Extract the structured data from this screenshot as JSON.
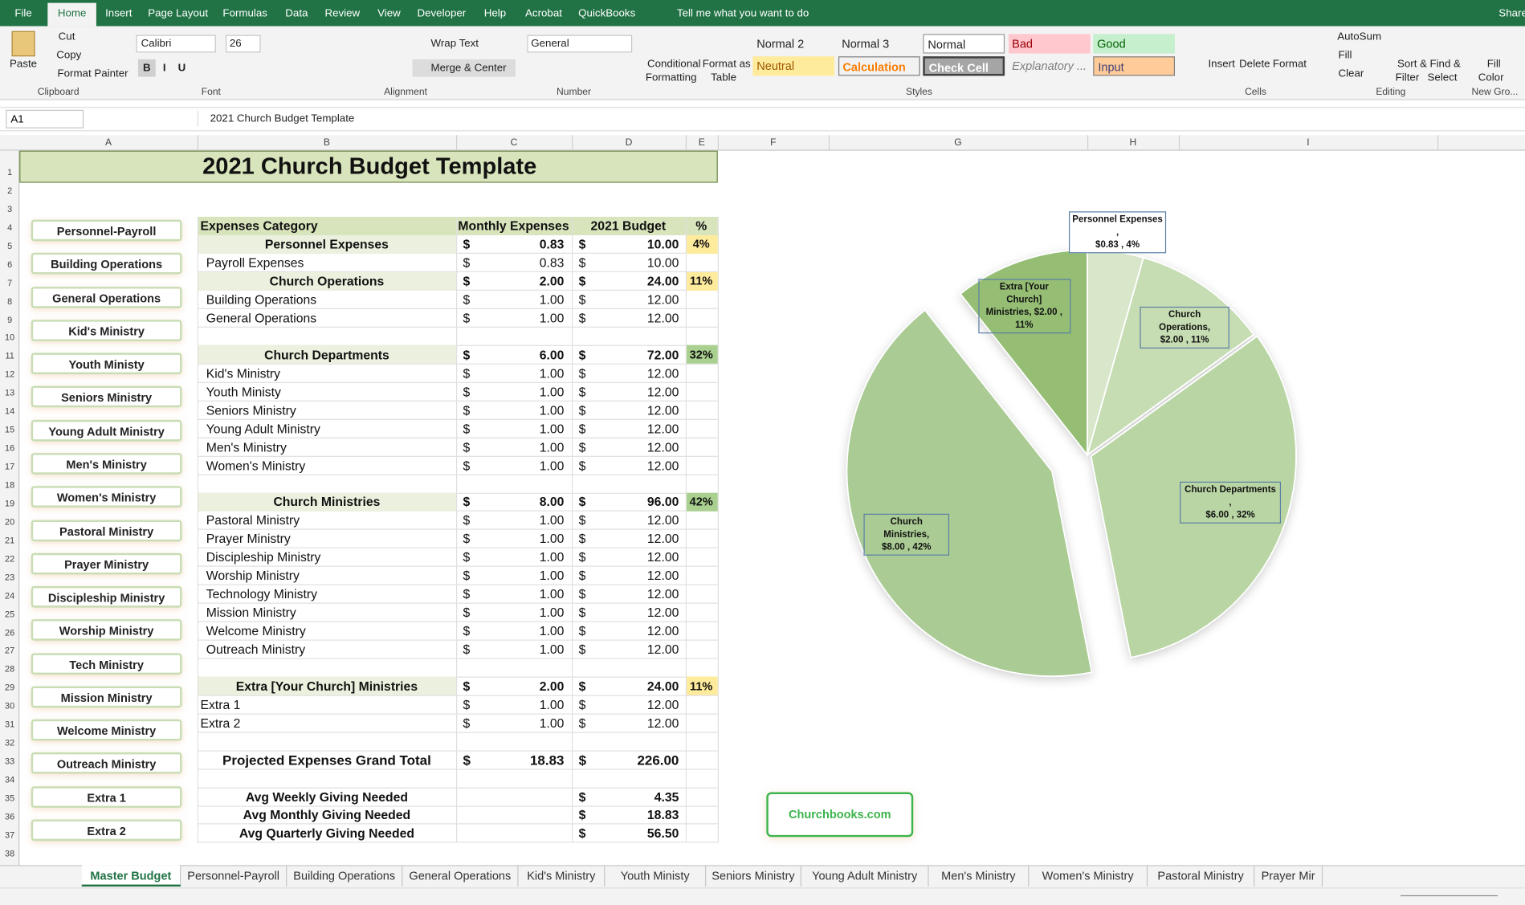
{
  "ribbon": {
    "tabs": [
      "File",
      "Home",
      "Insert",
      "Page Layout",
      "Formulas",
      "Data",
      "Review",
      "View",
      "Developer",
      "Help",
      "Acrobat",
      "QuickBooks"
    ],
    "active_tab": 1,
    "tell_me": "Tell me what you want to do",
    "share": "Share",
    "labels": [
      "Paste",
      "Cut",
      "Copy",
      "Format Painter",
      "Calibri",
      "26",
      "B",
      "I",
      "U",
      "Wrap Text",
      "Merge & Center",
      "General",
      "Conditional",
      "Formatting",
      "Format as",
      "Table",
      "Insert",
      "Delete",
      "Format",
      "AutoSum",
      "Fill",
      "Clear",
      "Sort &",
      "Filter",
      "Find &",
      "Select",
      "Fill",
      "Color"
    ],
    "styles": [
      "Normal 2",
      "Normal 3",
      "Normal",
      "Bad",
      "Good",
      "Neutral",
      "Calculation",
      "Check Cell",
      "Explanatory ...",
      "Input"
    ],
    "groups": [
      "Clipboard",
      "Font",
      "Alignment",
      "Number",
      "Styles",
      "Cells",
      "Editing",
      "New Gro..."
    ]
  },
  "formula_bar": {
    "name_box": "A1"
  },
  "column_headers": [
    "A",
    "B",
    "C",
    "D",
    "E",
    "F",
    "G",
    "H",
    "I"
  ],
  "row_headers": [
    1,
    2,
    3,
    4,
    5,
    6,
    7,
    8,
    9,
    10,
    11,
    12,
    13,
    14,
    15,
    16,
    17,
    18,
    19,
    20,
    21,
    22,
    23,
    24,
    25,
    26,
    27,
    28,
    29,
    30,
    31,
    32,
    33,
    34,
    35,
    36,
    37,
    38
  ],
  "sheet": {
    "title": "2021 Church Budget Template",
    "currency": "$",
    "header": [
      "Expenses Category",
      "Monthly Expenses",
      "2021 Budget",
      "%"
    ],
    "rows": [
      {
        "category": "Personnel Expenses",
        "monthly": "0.83",
        "budget": "10.00",
        "pct": "4%",
        "pct_color": "#ffeb9c",
        "kind": "section"
      },
      {
        "category": "Payroll Expenses",
        "monthly": "0.83",
        "budget": "10.00",
        "kind": "item"
      },
      {
        "category": "Church Operations",
        "monthly": "2.00",
        "budget": "24.00",
        "pct": "11%",
        "pct_color": "#ffeb9c",
        "kind": "section"
      },
      {
        "category": "Building Operations",
        "monthly": "1.00",
        "budget": "12.00",
        "kind": "item"
      },
      {
        "category": "General Operations",
        "monthly": "1.00",
        "budget": "12.00",
        "kind": "item"
      },
      null,
      {
        "category": "Church Departments",
        "monthly": "6.00",
        "budget": "72.00",
        "pct": "32%",
        "pct_color": "#a9d08e",
        "kind": "section"
      },
      {
        "category": "Kid's Ministry",
        "monthly": "1.00",
        "budget": "12.00",
        "kind": "item"
      },
      {
        "category": "Youth Ministy",
        "monthly": "1.00",
        "budget": "12.00",
        "kind": "item"
      },
      {
        "category": "Seniors Ministry",
        "monthly": "1.00",
        "budget": "12.00",
        "kind": "item"
      },
      {
        "category": "Young Adult Ministry",
        "monthly": "1.00",
        "budget": "12.00",
        "kind": "item"
      },
      {
        "category": "Men's Ministry",
        "monthly": "1.00",
        "budget": "12.00",
        "kind": "item"
      },
      {
        "category": "Women's Ministry",
        "monthly": "1.00",
        "budget": "12.00",
        "kind": "item"
      },
      null,
      {
        "category": "Church Ministries",
        "monthly": "8.00",
        "budget": "96.00",
        "pct": "42%",
        "pct_color": "#a9d08e",
        "kind": "section"
      },
      {
        "category": "Pastoral Ministry",
        "monthly": "1.00",
        "budget": "12.00",
        "kind": "item"
      },
      {
        "category": "Prayer Ministry",
        "monthly": "1.00",
        "budget": "12.00",
        "kind": "item"
      },
      {
        "category": "Discipleship Ministry",
        "monthly": "1.00",
        "budget": "12.00",
        "kind": "item"
      },
      {
        "category": "Worship Ministry",
        "monthly": "1.00",
        "budget": "12.00",
        "kind": "item"
      },
      {
        "category": "Technology Ministry",
        "monthly": "1.00",
        "budget": "12.00",
        "kind": "item"
      },
      {
        "category": "Mission Ministry",
        "monthly": "1.00",
        "budget": "12.00",
        "kind": "item"
      },
      {
        "category": "Welcome Ministry",
        "monthly": "1.00",
        "budget": "12.00",
        "kind": "item"
      },
      {
        "category": "Outreach Ministry",
        "monthly": "1.00",
        "budget": "12.00",
        "kind": "item"
      },
      null,
      {
        "category": "Extra [Your Church] Ministries",
        "monthly": "2.00",
        "budget": "24.00",
        "pct": "11%",
        "pct_color": "#ffeb9c",
        "kind": "section"
      },
      {
        "category": "Extra 1",
        "monthly": "1.00",
        "budget": "12.00",
        "kind": "item"
      },
      {
        "category": "Extra 2",
        "monthly": "1.00",
        "budget": "12.00",
        "kind": "item"
      },
      null,
      {
        "category": "Projected Expenses Grand Total",
        "monthly": "18.83",
        "budget": "226.00",
        "kind": "total"
      },
      null,
      {
        "category": "Avg Weekly Giving Needed",
        "budget": "4.35",
        "kind": "avg"
      },
      {
        "category": "Avg Monthly Giving Needed",
        "budget": "18.83",
        "kind": "avg"
      },
      {
        "category": "Avg Quarterly Giving Needed",
        "budget": "56.50",
        "kind": "avg"
      }
    ]
  },
  "buttons": [
    "Personnel-Payroll",
    "Building Operations",
    "General Operations",
    "Kid's Ministry",
    "Youth Ministy",
    "Seniors Ministry",
    "Young Adult Ministry",
    "Men's Ministry",
    "Women's Ministry",
    "Pastoral Ministry",
    "Prayer Ministry",
    "Discipleship Ministry",
    "Worship Ministry",
    "Tech Ministry",
    "Mission Ministry",
    "Welcome Ministry",
    "Outreach Ministry",
    "Extra 1",
    "Extra 2"
  ],
  "link_button": "Churchbooks.com",
  "chart": {
    "type": "pie",
    "values": [
      0.83,
      2.0,
      6.0,
      8.0,
      2.0
    ],
    "value_labels": [
      "Personnel Expenses ,\n$0.83 , 4%",
      "Church Operations,\n$2.00 , 11%",
      "Church Departments ,\n$6.00 , 32%",
      "Church Ministries,\n$8.00 , 42%",
      "Extra [Your Church]\nMinistries, $2.00 ,\n11%"
    ],
    "colors": [
      "#d8e6ca",
      "#c6dcb2",
      "#b9d5a3",
      "#aacb93",
      "#95be74"
    ]
  },
  "sheet_tabs": [
    "Master Budget",
    "Personnel-Payroll",
    "Building Operations",
    "General Operations",
    "Kid's Ministry",
    "Youth Ministy",
    "Seniors Ministry",
    "Young Adult Ministry",
    "Men's Ministry",
    "Women's Ministry",
    "Pastoral Ministry",
    "Prayer Mir"
  ],
  "active_sheet": 0
}
